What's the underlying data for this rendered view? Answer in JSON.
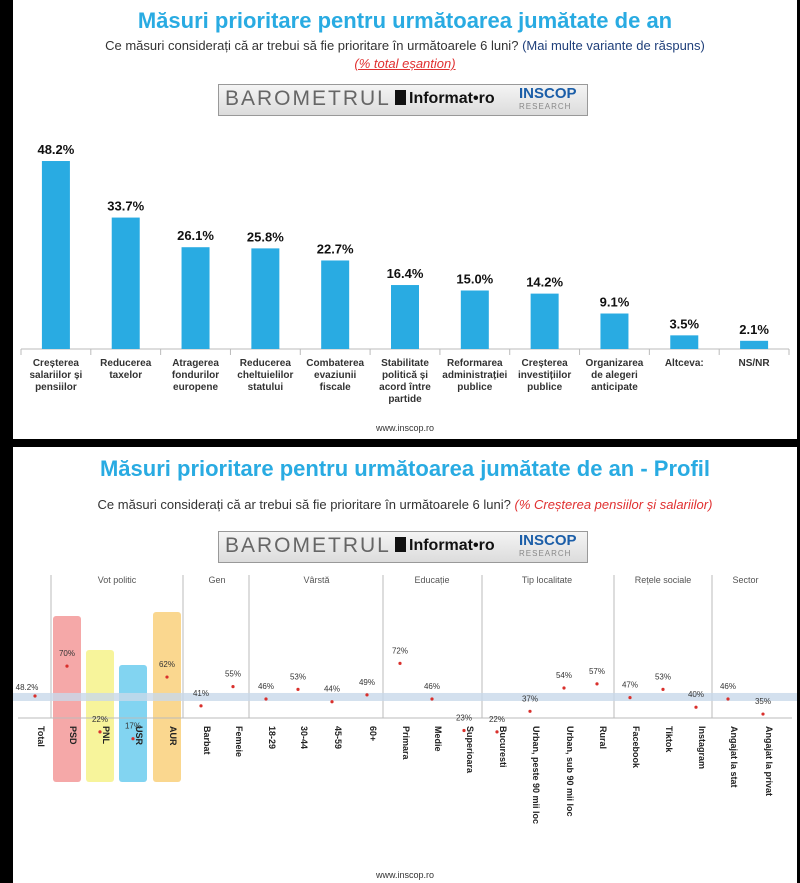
{
  "top": {
    "title": "Măsuri prioritare pentru următoarea jumătate de an",
    "question": "Ce măsuri considerați că ar trebui să fie prioritare în următoarele 6 luni?",
    "question_note": "(Mai multe variante de răspuns)",
    "base": "(% total eșantion)",
    "footer": "www.inscop.ro"
  },
  "bottom": {
    "title": "Măsuri prioritare pentru următoarea jumătate de an - Profil",
    "question": "Ce măsuri considerați că ar trebui să fie prioritare în următoarele 6 luni?",
    "base": "(% Creșterea pensiilor și salariilor)",
    "footer": "www.inscop.ro"
  },
  "logo": {
    "barometrul": "BAROMETRUL",
    "informat": "Informat•ro",
    "inscop": "INSCOP",
    "research": "RESEARCH"
  },
  "colors": {
    "bar": "#29abe2",
    "title": "#29abe2",
    "point": "#d9302c",
    "band": "#c8d8ea"
  },
  "chart_data": [
    {
      "type": "bar",
      "categories": [
        [
          "Creșterea",
          "salariilor și",
          "pensiilor"
        ],
        [
          "Reducerea",
          "taxelor"
        ],
        [
          "Atragerea",
          "fondurilor",
          "europene"
        ],
        [
          "Reducerea",
          "cheltuielilor",
          "statului"
        ],
        [
          "Combaterea",
          "evaziunii",
          "fiscale"
        ],
        [
          "Stabilitate",
          "politică și",
          "acord între",
          "partide"
        ],
        [
          "Reformarea",
          "administrației",
          "publice"
        ],
        [
          "Creșterea",
          "investițiilor",
          "publice"
        ],
        [
          "Organizarea",
          "de alegeri",
          "anticipate"
        ],
        [
          "Altceva:"
        ],
        [
          "NS/NR"
        ]
      ],
      "values": [
        48.2,
        33.7,
        26.1,
        25.8,
        22.7,
        16.4,
        15.0,
        14.2,
        9.1,
        3.5,
        2.1
      ],
      "value_labels": [
        "48.2%",
        "33.7%",
        "26.1%",
        "25.8%",
        "22.7%",
        "16.4%",
        "15.0%",
        "14.2%",
        "9.1%",
        "3.5%",
        "2.1%"
      ],
      "ylim": [
        0,
        50
      ]
    },
    {
      "type": "scatter",
      "groups": [
        {
          "name": "",
          "items": [
            "Total"
          ]
        },
        {
          "name": "Vot politic",
          "items": [
            "PSD",
            "PNL",
            "USR",
            "AUR"
          ]
        },
        {
          "name": "Gen",
          "items": [
            "Barbat",
            "Femeie"
          ]
        },
        {
          "name": "Vârstă",
          "items": [
            "18-29",
            "30-44",
            "45-59",
            "60+"
          ]
        },
        {
          "name": "Educație",
          "items": [
            "Primara",
            "Medie",
            "Superioara"
          ]
        },
        {
          "name": "Tip localitate",
          "items": [
            "Bucuresti",
            "Urban, peste 90 mii loc",
            "Urban, sub 90 mii loc",
            "Rural"
          ]
        },
        {
          "name": "Rețele sociale",
          "items": [
            "Facebook",
            "Tiktok",
            "Instagram"
          ]
        },
        {
          "name": "Sector",
          "items": [
            "Angajat la stat",
            "Angajat la privat"
          ]
        }
      ],
      "categories": [
        "Total",
        "PSD",
        "PNL",
        "USR",
        "AUR",
        "Barbat",
        "Femeie",
        "18-29",
        "30-44",
        "45-59",
        "60+",
        "Primara",
        "Medie",
        "Superioara",
        "Bucuresti",
        "Urban, peste 90 mii loc",
        "Urban, sub 90 mii loc",
        "Rural",
        "Facebook",
        "Tiktok",
        "Instagram",
        "Angajat la stat",
        "Angajat la privat"
      ],
      "values": [
        48.2,
        70,
        22,
        17,
        62,
        41,
        55,
        46,
        53,
        44,
        49,
        72,
        46,
        23,
        22,
        37,
        54,
        57,
        47,
        53,
        40,
        46,
        35
      ],
      "value_labels": [
        "48.2%",
        "70%",
        "22%",
        "17%",
        "62%",
        "41%",
        "55%",
        "46%",
        "53%",
        "44%",
        "49%",
        "72%",
        "46%",
        "23%",
        "22%",
        "37%",
        "54%",
        "57%",
        "47%",
        "53%",
        "40%",
        "46%",
        "35%"
      ],
      "party_colors": {
        "PSD": "#f28b8b",
        "PNL": "#f4f07a",
        "USR": "#58c6ec",
        "AUR": "#f8c96a"
      },
      "reference_value": 48.2,
      "ylim": [
        0,
        80
      ]
    }
  ]
}
